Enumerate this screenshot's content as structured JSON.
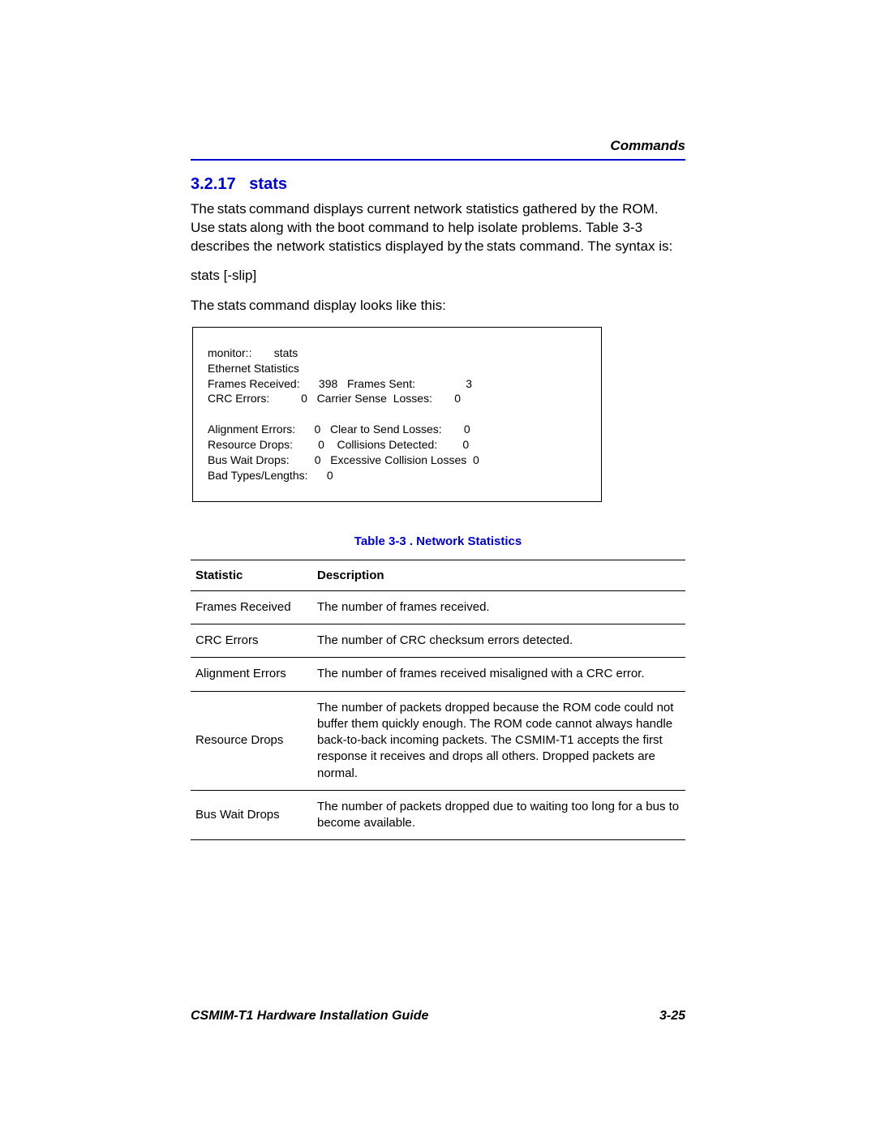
{
  "header": {
    "label": "Commands"
  },
  "section": {
    "number": "3.2.17",
    "title": "stats"
  },
  "paragraphs": {
    "intro_html": "The stats command displays current network statistics gathered by the ROM. Use stats along with the boot command to help isolate problems. Table 3-3 describes the network statistics displayed by the stats command. The syntax is:",
    "syntax": "stats [-slip]",
    "display_intro": "The stats command display looks like this:"
  },
  "code_lines": [
    "monitor::       stats",
    "Ethernet Statistics",
    "Frames Received:      398   Frames Sent:                3",
    "CRC Errors:          0   Carrier Sense  Losses:       0",
    "",
    "Alignment Errors:      0   Clear to Send Losses:       0",
    "Resource Drops:        0    Collisions Detected:        0",
    "Bus Wait Drops:        0   Excessive Collision Losses  0",
    "Bad Types/Lengths:      0"
  ],
  "table": {
    "caption": "Table 3-3   . Network Statistics",
    "headers": {
      "col1": "Statistic",
      "col2": "Description"
    },
    "rows": [
      {
        "stat": "Frames Received",
        "desc": "The number of frames received."
      },
      {
        "stat": "CRC Errors",
        "desc": "The number of CRC checksum errors detected."
      },
      {
        "stat": "Alignment Errors",
        "desc": "The number of frames received misaligned with a CRC error."
      },
      {
        "stat": "Resource Drops",
        "desc": "The number of packets dropped because the ROM code could not buffer them quickly enough. The ROM code cannot always handle back-to-back incoming packets. The CSMIM-T1 accepts the first response it receives and drops all others. Dropped packets are normal."
      },
      {
        "stat": "Bus Wait Drops",
        "desc": "The number of packets dropped due to waiting too long for a bus to become available."
      }
    ]
  },
  "footer": {
    "left": "CSMIM-T1 Hardware Installation Guide",
    "right": "3-25"
  }
}
